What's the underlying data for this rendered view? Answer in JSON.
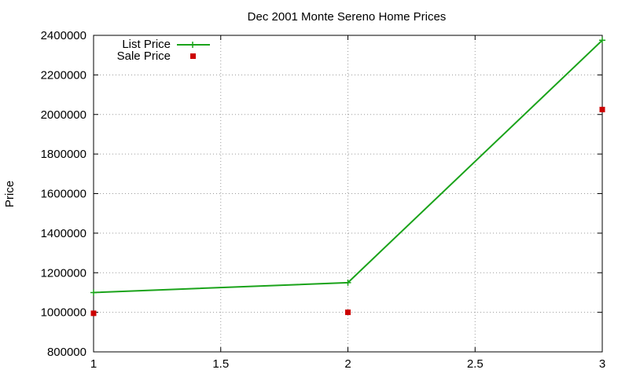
{
  "chart_data": {
    "type": "line",
    "title": "Dec 2001 Monte Sereno Home Prices",
    "xlabel": "",
    "ylabel": "Price",
    "xlim": [
      1,
      3
    ],
    "ylim": [
      800000,
      2400000
    ],
    "x_ticks": [
      "1",
      "1.5",
      "2",
      "2.5",
      "3"
    ],
    "y_ticks": [
      "800000",
      "1000000",
      "1200000",
      "1400000",
      "1600000",
      "1800000",
      "2000000",
      "2200000",
      "2400000"
    ],
    "grid": true,
    "legend_position": "top-left",
    "series": [
      {
        "name": "List Price",
        "style": "line+cross",
        "color": "#1aa31a",
        "x": [
          1,
          2,
          3
        ],
        "values": [
          1100000,
          1150000,
          2375000
        ]
      },
      {
        "name": "Sale Price",
        "style": "square-points",
        "color": "#cc0000",
        "x": [
          1,
          2,
          3
        ],
        "values": [
          995000,
          1000000,
          2025000
        ]
      }
    ]
  }
}
